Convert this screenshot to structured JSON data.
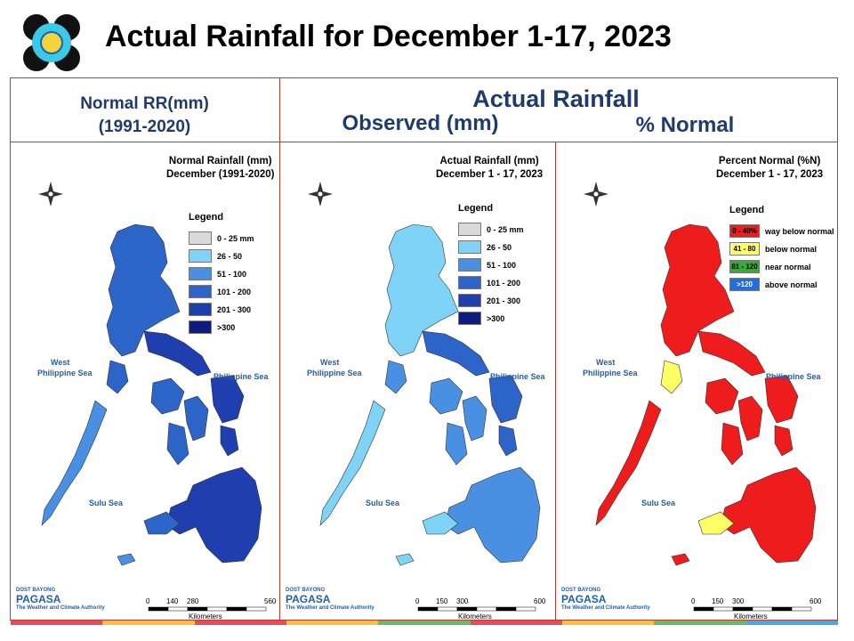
{
  "title": "Actual Rainfall for December 1-17, 2023",
  "headers": {
    "normal_line1": "Normal RR(mm)",
    "normal_line2": "(1991-2020)",
    "actual": "Actual Rainfall",
    "observed": "Observed (mm)",
    "percent": "% Normal"
  },
  "maps": [
    {
      "title_line1": "Normal Rainfall (mm)",
      "title_line2": "December (1991-2020)",
      "legend_title": "Legend",
      "legend": [
        {
          "label": "0 - 25 mm",
          "color": "#d9d9d9"
        },
        {
          "label": "26 - 50",
          "color": "#7fd3f7"
        },
        {
          "label": "51 - 100",
          "color": "#4a90e2"
        },
        {
          "label": "101 - 200",
          "color": "#2c64c8"
        },
        {
          "label": "201 - 300",
          "color": "#1f3fae"
        },
        {
          "label": ">300",
          "color": "#0c1c82"
        }
      ],
      "sea_west_1": "West",
      "sea_west_2": "Philippine Sea",
      "sea_east": "Philippine Sea",
      "sea_south": "Sulu Sea",
      "scale_ticks": [
        "0",
        "140",
        "280",
        "560"
      ],
      "scale_unit": "Kilometers"
    },
    {
      "title_line1": "Actual Rainfall (mm)",
      "title_line2": "December 1 - 17, 2023",
      "legend_title": "Legend",
      "legend": [
        {
          "label": "0 - 25 mm",
          "color": "#d9d9d9"
        },
        {
          "label": "26 - 50",
          "color": "#7fd3f7"
        },
        {
          "label": "51 - 100",
          "color": "#4a90e2"
        },
        {
          "label": "101 - 200",
          "color": "#2c64c8"
        },
        {
          "label": "201 - 300",
          "color": "#1f3fae"
        },
        {
          "label": ">300",
          "color": "#0c1c82"
        }
      ],
      "sea_west_1": "West",
      "sea_west_2": "Philippine Sea",
      "sea_east": "Philippine Sea",
      "sea_south": "Sulu Sea",
      "scale_ticks": [
        "0",
        "150",
        "300",
        "600"
      ],
      "scale_unit": "Kilometers"
    },
    {
      "title_line1": "Percent Normal (%N)",
      "title_line2": "December 1 - 17, 2023",
      "legend_title": "Legend",
      "legend": [
        {
          "swatch": "0 - 40%",
          "label": "way below normal",
          "color": "#ee1c1c"
        },
        {
          "swatch": "41 - 80",
          "label": "below normal",
          "color": "#ffff66"
        },
        {
          "swatch": "81 - 120",
          "label": "near normal",
          "color": "#3aa83a"
        },
        {
          "swatch": ">120",
          "label": "above normal",
          "color": "#1f6fe0"
        }
      ],
      "sea_west_1": "West",
      "sea_west_2": "Philippine Sea",
      "sea_east": "Philippine Sea",
      "sea_south": "Sulu Sea",
      "scale_ticks": [
        "0",
        "150",
        "300",
        "600"
      ],
      "scale_unit": "Kilometers"
    }
  ],
  "brand": {
    "name": "PAGASA",
    "tagline": "The Weather and Climate Authority",
    "dost": "DOST",
    "bayong": "BAYONG"
  },
  "colors": {
    "frame": "#c0392b",
    "header_text": "#1f3b6d",
    "sea_text": "#1f5fae"
  }
}
